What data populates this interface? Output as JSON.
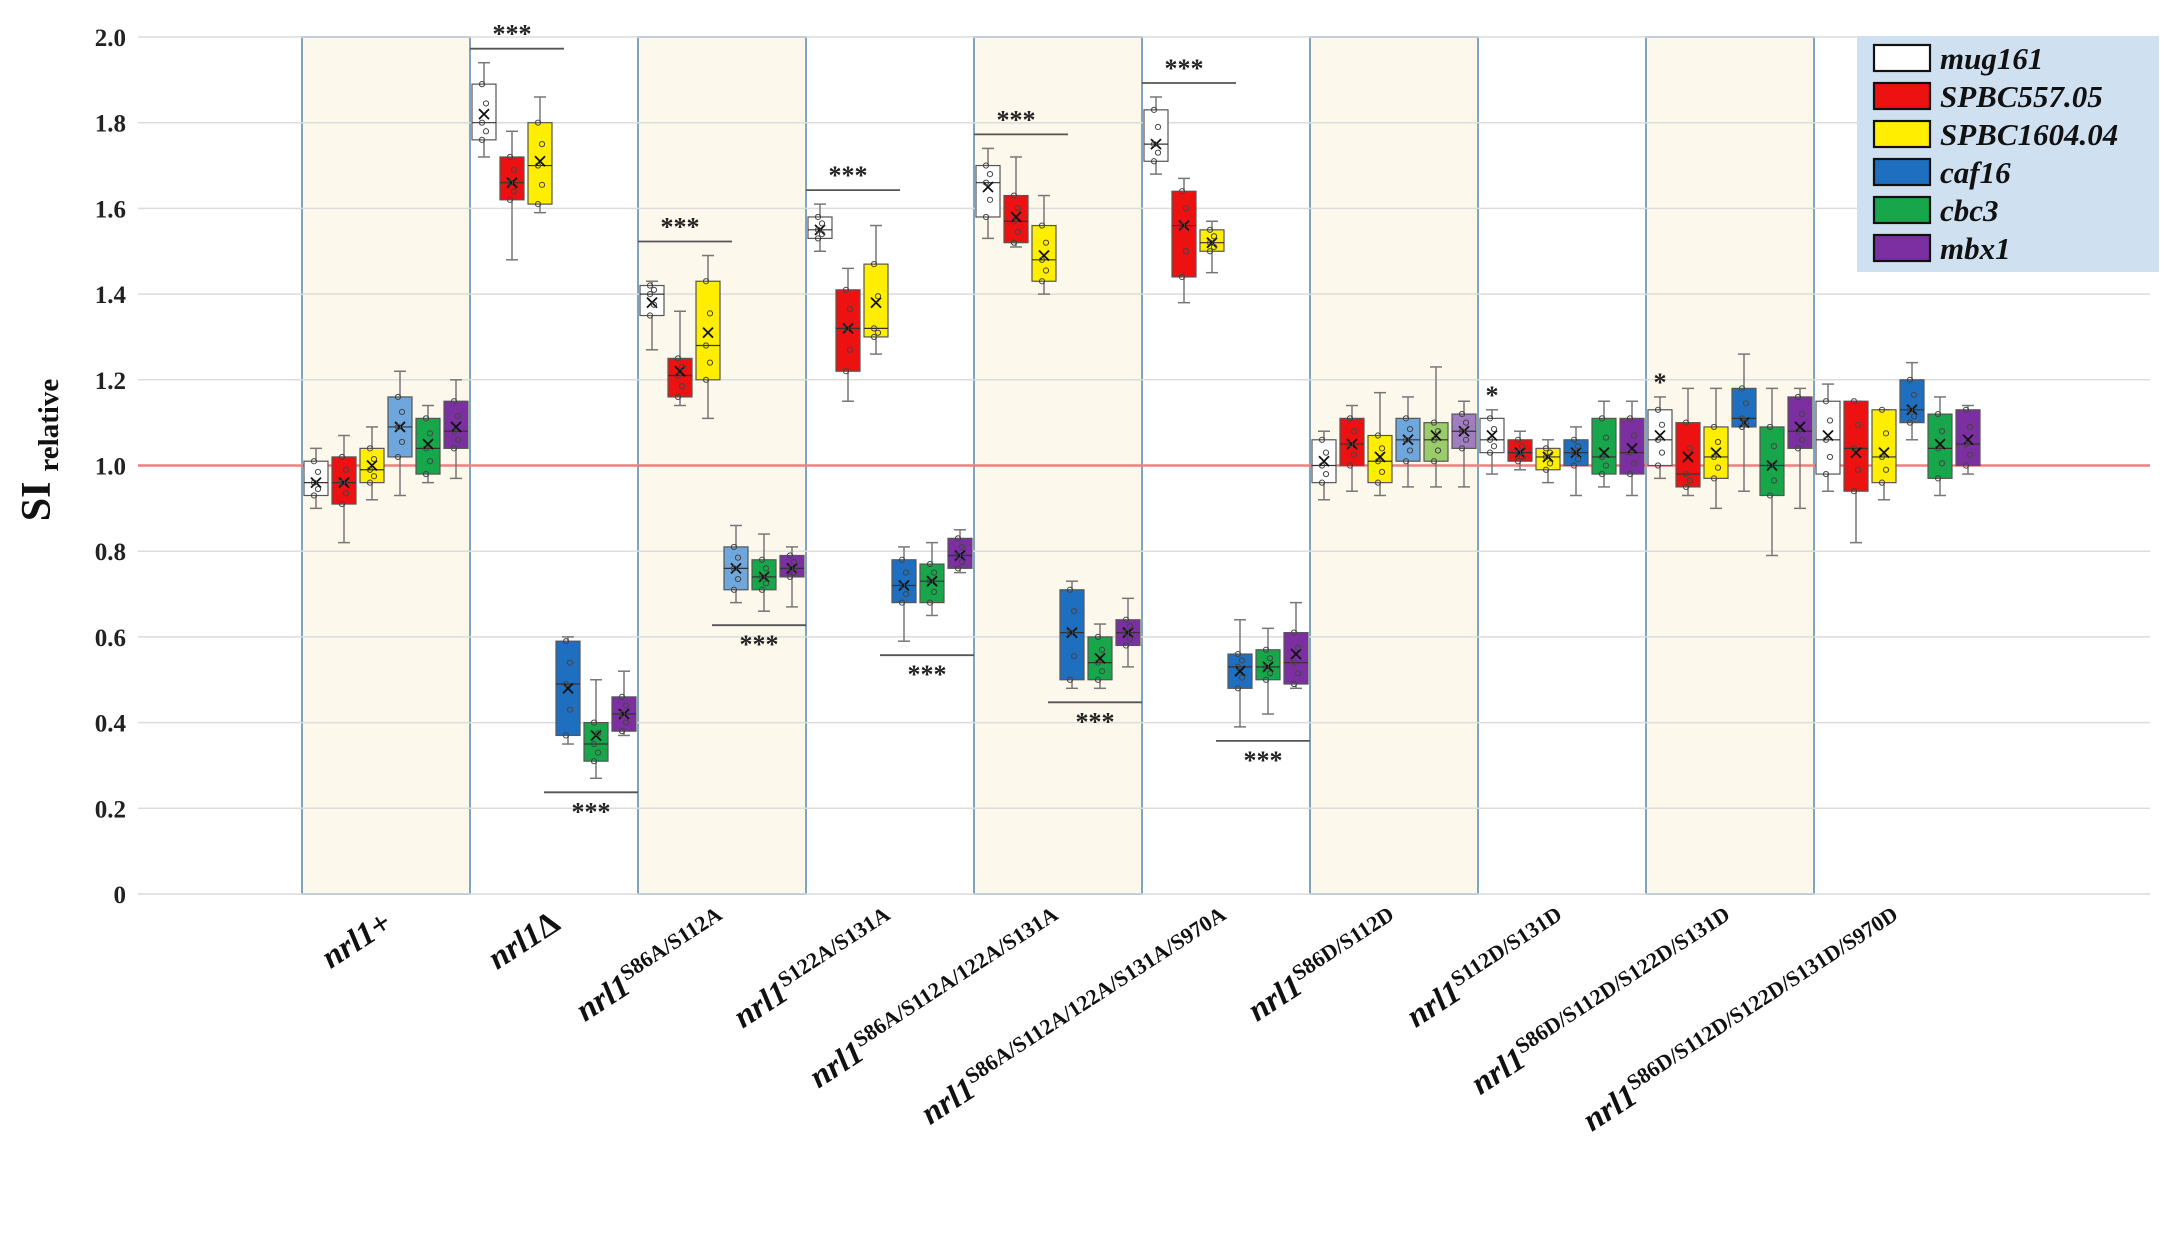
{
  "chart_data": {
    "type": "box",
    "ylabel": "SI",
    "ylabel_sub": "relative",
    "ylim": [
      0,
      2.0
    ],
    "yticks": [
      "0",
      "0.2",
      "0.4",
      "0.6",
      "0.8",
      "1.0",
      "1.2",
      "1.4",
      "1.6",
      "1.8",
      "2.0"
    ],
    "reference_line": 1.0,
    "legend_position": "top-right",
    "series": [
      {
        "name": "mug161",
        "color": "#ffffff"
      },
      {
        "name": "SPBC557.05",
        "color": "#ee1111"
      },
      {
        "name": "SPBC1604.04",
        "color": "#ffee00"
      },
      {
        "name": "caf16",
        "color": "#1f6fc0"
      },
      {
        "name": "cbc3",
        "color": "#17a64a"
      },
      {
        "name": "mbx1",
        "color": "#7b2fa0"
      }
    ],
    "categories": [
      {
        "base": "nrl1",
        "sup": "+",
        "shaded": true,
        "sig_upper": "",
        "sig_lower": "",
        "boxes": [
          {
            "series": 0,
            "min": 0.9,
            "q1": 0.93,
            "median": 0.96,
            "q3": 1.01,
            "max": 1.04,
            "mean": 0.96,
            "color": "#ffffff"
          },
          {
            "series": 1,
            "min": 0.82,
            "q1": 0.91,
            "median": 0.96,
            "q3": 1.02,
            "max": 1.07,
            "mean": 0.96,
            "color": "#ee1111"
          },
          {
            "series": 2,
            "min": 0.92,
            "q1": 0.96,
            "median": 0.99,
            "q3": 1.04,
            "max": 1.09,
            "mean": 1.0,
            "color": "#ffee00"
          },
          {
            "series": 3,
            "min": 0.93,
            "q1": 1.02,
            "median": 1.09,
            "q3": 1.16,
            "max": 1.22,
            "mean": 1.09,
            "color": "#6fa6dc"
          },
          {
            "series": 4,
            "min": 0.96,
            "q1": 0.98,
            "median": 1.04,
            "q3": 1.11,
            "max": 1.14,
            "mean": 1.05,
            "color": "#17a64a"
          },
          {
            "series": 5,
            "min": 0.97,
            "q1": 1.04,
            "median": 1.08,
            "q3": 1.15,
            "max": 1.2,
            "mean": 1.09,
            "color": "#7b2fa0"
          }
        ]
      },
      {
        "base": "nrl1",
        "sup": "Δ",
        "shaded": false,
        "sig_upper": "***",
        "sig_lower": "***",
        "boxes": [
          {
            "series": 0,
            "min": 1.72,
            "q1": 1.76,
            "median": 1.8,
            "q3": 1.89,
            "max": 1.94,
            "mean": 1.82,
            "color": "#ffffff"
          },
          {
            "series": 1,
            "min": 1.48,
            "q1": 1.62,
            "median": 1.66,
            "q3": 1.72,
            "max": 1.78,
            "mean": 1.66,
            "color": "#ee1111"
          },
          {
            "series": 2,
            "min": 1.59,
            "q1": 1.61,
            "median": 1.7,
            "q3": 1.8,
            "max": 1.86,
            "mean": 1.71,
            "color": "#ffee00"
          },
          {
            "series": 3,
            "min": 0.35,
            "q1": 0.37,
            "median": 0.49,
            "q3": 0.59,
            "max": 0.6,
            "mean": 0.48,
            "color": "#1f6fc0"
          },
          {
            "series": 4,
            "min": 0.27,
            "q1": 0.31,
            "median": 0.35,
            "q3": 0.4,
            "max": 0.5,
            "mean": 0.37,
            "color": "#17a64a"
          },
          {
            "series": 5,
            "min": 0.37,
            "q1": 0.38,
            "median": 0.42,
            "q3": 0.46,
            "max": 0.52,
            "mean": 0.42,
            "color": "#7b2fa0"
          }
        ]
      },
      {
        "base": "nrl1",
        "sup": "S86A/S112A",
        "shaded": true,
        "sig_upper": "***",
        "sig_lower": "***",
        "boxes": [
          {
            "series": 0,
            "min": 1.27,
            "q1": 1.35,
            "median": 1.4,
            "q3": 1.42,
            "max": 1.43,
            "mean": 1.38,
            "color": "#ffffff"
          },
          {
            "series": 1,
            "min": 1.14,
            "q1": 1.16,
            "median": 1.21,
            "q3": 1.25,
            "max": 1.36,
            "mean": 1.22,
            "color": "#ee1111"
          },
          {
            "series": 2,
            "min": 1.11,
            "q1": 1.2,
            "median": 1.28,
            "q3": 1.43,
            "max": 1.49,
            "mean": 1.31,
            "color": "#ffee00"
          },
          {
            "series": 3,
            "min": 0.68,
            "q1": 0.71,
            "median": 0.76,
            "q3": 0.81,
            "max": 0.86,
            "mean": 0.76,
            "color": "#6fa6dc"
          },
          {
            "series": 4,
            "min": 0.66,
            "q1": 0.71,
            "median": 0.74,
            "q3": 0.78,
            "max": 0.84,
            "mean": 0.74,
            "color": "#17a64a"
          },
          {
            "series": 5,
            "min": 0.67,
            "q1": 0.74,
            "median": 0.76,
            "q3": 0.79,
            "max": 0.81,
            "mean": 0.76,
            "color": "#7b2fa0"
          }
        ]
      },
      {
        "base": "nrl1",
        "sup": "S122A/S131A",
        "shaded": false,
        "sig_upper": "***",
        "sig_lower": "***",
        "boxes": [
          {
            "series": 0,
            "min": 1.5,
            "q1": 1.53,
            "median": 1.55,
            "q3": 1.58,
            "max": 1.61,
            "mean": 1.55,
            "color": "#ffffff"
          },
          {
            "series": 1,
            "min": 1.15,
            "q1": 1.22,
            "median": 1.32,
            "q3": 1.41,
            "max": 1.46,
            "mean": 1.32,
            "color": "#ee1111"
          },
          {
            "series": 2,
            "min": 1.26,
            "q1": 1.3,
            "median": 1.32,
            "q3": 1.47,
            "max": 1.56,
            "mean": 1.38,
            "color": "#ffee00"
          },
          {
            "series": 3,
            "min": 0.59,
            "q1": 0.68,
            "median": 0.72,
            "q3": 0.78,
            "max": 0.81,
            "mean": 0.72,
            "color": "#1f6fc0"
          },
          {
            "series": 4,
            "min": 0.65,
            "q1": 0.68,
            "median": 0.73,
            "q3": 0.77,
            "max": 0.82,
            "mean": 0.73,
            "color": "#17a64a"
          },
          {
            "series": 5,
            "min": 0.75,
            "q1": 0.76,
            "median": 0.79,
            "q3": 0.83,
            "max": 0.85,
            "mean": 0.79,
            "color": "#7b2fa0"
          }
        ]
      },
      {
        "base": "nrl1",
        "sup": "S86A/S112A/122A/S131A",
        "shaded": true,
        "sig_upper": "***",
        "sig_lower": "***",
        "boxes": [
          {
            "series": 0,
            "min": 1.53,
            "q1": 1.58,
            "median": 1.66,
            "q3": 1.7,
            "max": 1.74,
            "mean": 1.65,
            "color": "#ffffff"
          },
          {
            "series": 1,
            "min": 1.51,
            "q1": 1.52,
            "median": 1.57,
            "q3": 1.63,
            "max": 1.72,
            "mean": 1.58,
            "color": "#ee1111"
          },
          {
            "series": 2,
            "min": 1.4,
            "q1": 1.43,
            "median": 1.48,
            "q3": 1.56,
            "max": 1.63,
            "mean": 1.49,
            "color": "#ffee00"
          },
          {
            "series": 3,
            "min": 0.48,
            "q1": 0.5,
            "median": 0.61,
            "q3": 0.71,
            "max": 0.73,
            "mean": 0.61,
            "color": "#1f6fc0"
          },
          {
            "series": 4,
            "min": 0.48,
            "q1": 0.5,
            "median": 0.54,
            "q3": 0.6,
            "max": 0.63,
            "mean": 0.55,
            "color": "#17a64a"
          },
          {
            "series": 5,
            "min": 0.53,
            "q1": 0.58,
            "median": 0.61,
            "q3": 0.64,
            "max": 0.69,
            "mean": 0.61,
            "color": "#7b2fa0"
          }
        ]
      },
      {
        "base": "nrl1",
        "sup": "S86A/S112A/122A/S131A/S970A",
        "shaded": false,
        "sig_upper": "***",
        "sig_lower": "***",
        "boxes": [
          {
            "series": 0,
            "min": 1.68,
            "q1": 1.71,
            "median": 1.75,
            "q3": 1.83,
            "max": 1.86,
            "mean": 1.75,
            "color": "#ffffff"
          },
          {
            "series": 1,
            "min": 1.38,
            "q1": 1.44,
            "median": 1.56,
            "q3": 1.64,
            "max": 1.67,
            "mean": 1.56,
            "color": "#ee1111"
          },
          {
            "series": 2,
            "min": 1.45,
            "q1": 1.5,
            "median": 1.52,
            "q3": 1.55,
            "max": 1.57,
            "mean": 1.52,
            "color": "#ffee00"
          },
          {
            "series": 3,
            "min": 0.39,
            "q1": 0.48,
            "median": 0.53,
            "q3": 0.56,
            "max": 0.64,
            "mean": 0.52,
            "color": "#1f6fc0"
          },
          {
            "series": 4,
            "min": 0.42,
            "q1": 0.5,
            "median": 0.53,
            "q3": 0.57,
            "max": 0.62,
            "mean": 0.53,
            "color": "#17a64a"
          },
          {
            "series": 5,
            "min": 0.48,
            "q1": 0.49,
            "median": 0.54,
            "q3": 0.61,
            "max": 0.68,
            "mean": 0.56,
            "color": "#7b2fa0"
          }
        ]
      },
      {
        "base": "nrl1",
        "sup": "S86D/S112D",
        "shaded": true,
        "sig_upper": "",
        "sig_lower": "",
        "boxes": [
          {
            "series": 0,
            "min": 0.92,
            "q1": 0.96,
            "median": 1.0,
            "q3": 1.06,
            "max": 1.08,
            "mean": 1.01,
            "color": "#ffffff"
          },
          {
            "series": 1,
            "min": 0.94,
            "q1": 1.0,
            "median": 1.05,
            "q3": 1.11,
            "max": 1.14,
            "mean": 1.05,
            "color": "#ee1111"
          },
          {
            "series": 2,
            "min": 0.93,
            "q1": 0.96,
            "median": 1.01,
            "q3": 1.07,
            "max": 1.17,
            "mean": 1.02,
            "color": "#ffee00"
          },
          {
            "series": 3,
            "min": 0.95,
            "q1": 1.01,
            "median": 1.06,
            "q3": 1.11,
            "max": 1.16,
            "mean": 1.06,
            "color": "#6fa6dc"
          },
          {
            "series": 4,
            "min": 0.95,
            "q1": 1.01,
            "median": 1.06,
            "q3": 1.1,
            "max": 1.23,
            "mean": 1.07,
            "color": "#9acd6a"
          },
          {
            "series": 5,
            "min": 0.95,
            "q1": 1.04,
            "median": 1.08,
            "q3": 1.12,
            "max": 1.15,
            "mean": 1.08,
            "color": "#a07cc0"
          }
        ]
      },
      {
        "base": "nrl1",
        "sup": "S112D/S131D",
        "shaded": false,
        "sig_upper": "*",
        "sig_lower": "",
        "boxes": [
          {
            "series": 0,
            "min": 0.98,
            "q1": 1.03,
            "median": 1.06,
            "q3": 1.11,
            "max": 1.13,
            "mean": 1.07,
            "color": "#ffffff"
          },
          {
            "series": 1,
            "min": 0.99,
            "q1": 1.01,
            "median": 1.03,
            "q3": 1.06,
            "max": 1.08,
            "mean": 1.03,
            "color": "#ee1111"
          },
          {
            "series": 2,
            "min": 0.96,
            "q1": 0.99,
            "median": 1.02,
            "q3": 1.04,
            "max": 1.06,
            "mean": 1.02,
            "color": "#ffee00"
          },
          {
            "series": 3,
            "min": 0.93,
            "q1": 1.0,
            "median": 1.03,
            "q3": 1.06,
            "max": 1.09,
            "mean": 1.03,
            "color": "#1f6fc0"
          },
          {
            "series": 4,
            "min": 0.95,
            "q1": 0.98,
            "median": 1.02,
            "q3": 1.11,
            "max": 1.15,
            "mean": 1.03,
            "color": "#17a64a"
          },
          {
            "series": 5,
            "min": 0.93,
            "q1": 0.98,
            "median": 1.03,
            "q3": 1.11,
            "max": 1.15,
            "mean": 1.04,
            "color": "#7b2fa0"
          }
        ]
      },
      {
        "base": "nrl1",
        "sup": "S86D/S112D/S122D/S131D",
        "shaded": true,
        "sig_upper": "*",
        "sig_lower": "",
        "boxes": [
          {
            "series": 0,
            "min": 0.97,
            "q1": 1.0,
            "median": 1.06,
            "q3": 1.13,
            "max": 1.16,
            "mean": 1.07,
            "color": "#ffffff"
          },
          {
            "series": 1,
            "min": 0.93,
            "q1": 0.95,
            "median": 0.98,
            "q3": 1.1,
            "max": 1.18,
            "mean": 1.02,
            "color": "#ee1111"
          },
          {
            "series": 2,
            "min": 0.9,
            "q1": 0.97,
            "median": 1.02,
            "q3": 1.09,
            "max": 1.18,
            "mean": 1.03,
            "color": "#ffee00"
          },
          {
            "series": 3,
            "min": 0.94,
            "q1": 1.09,
            "median": 1.11,
            "q3": 1.18,
            "max": 1.26,
            "mean": 1.1,
            "color": "#1f6fc0"
          },
          {
            "series": 4,
            "min": 0.79,
            "q1": 0.93,
            "median": 1.0,
            "q3": 1.09,
            "max": 1.18,
            "mean": 1.0,
            "color": "#17a64a"
          },
          {
            "series": 5,
            "min": 0.9,
            "q1": 1.04,
            "median": 1.08,
            "q3": 1.16,
            "max": 1.18,
            "mean": 1.09,
            "color": "#7b2fa0"
          }
        ]
      },
      {
        "base": "nrl1",
        "sup": "S86D/S112D/S122D/S131D/S970D",
        "shaded": false,
        "sig_upper": "",
        "sig_lower": "",
        "boxes": [
          {
            "series": 0,
            "min": 0.94,
            "q1": 0.98,
            "median": 1.06,
            "q3": 1.15,
            "max": 1.19,
            "mean": 1.07,
            "color": "#ffffff"
          },
          {
            "series": 1,
            "min": 0.82,
            "q1": 0.94,
            "median": 1.04,
            "q3": 1.15,
            "max": 1.15,
            "mean": 1.03,
            "color": "#ee1111"
          },
          {
            "series": 2,
            "min": 0.92,
            "q1": 0.96,
            "median": 1.02,
            "q3": 1.13,
            "max": 1.13,
            "mean": 1.03,
            "color": "#ffee00"
          },
          {
            "series": 3,
            "min": 1.06,
            "q1": 1.1,
            "median": 1.13,
            "q3": 1.2,
            "max": 1.24,
            "mean": 1.13,
            "color": "#1f6fc0"
          },
          {
            "series": 4,
            "min": 0.93,
            "q1": 0.97,
            "median": 1.04,
            "q3": 1.12,
            "max": 1.16,
            "mean": 1.05,
            "color": "#17a64a"
          },
          {
            "series": 5,
            "min": 0.98,
            "q1": 1.0,
            "median": 1.05,
            "q3": 1.13,
            "max": 1.14,
            "mean": 1.06,
            "color": "#7b2fa0"
          }
        ]
      }
    ]
  }
}
